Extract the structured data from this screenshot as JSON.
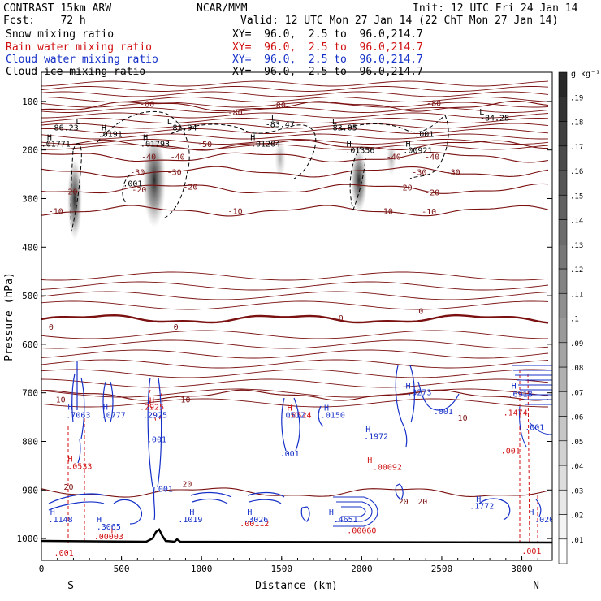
{
  "header": {
    "model": "CONTRAST 15km ARW",
    "forecast": "Fcst:    72 h",
    "center": "NCAR/MMM",
    "init": "Init: 12 UTC Fri 24 Jan 14",
    "valid": "Valid: 12 UTC Mon 27 Jan 14 (22 ChT Mon 27 Jan 14)",
    "fields": [
      {
        "label": "Snow mixing ratio",
        "xy": "XY=  96.0,  2.5 to  96.0,214.7",
        "color": "#000000"
      },
      {
        "label": "Rain water mixing ratio",
        "xy": "XY=  96.0,  2.5 to  96.0,214.7",
        "color": "#d01010"
      },
      {
        "label": "Cloud water mixing ratio",
        "xy": "XY=  96.0,  2.5 to  96.0,214.7",
        "color": "#1530c8"
      },
      {
        "label": "Cloud ice mixing ratio",
        "xy": "XY=  96.0,  2.5 to  96.0,214.7",
        "color": "#000000"
      }
    ]
  },
  "chart_data": {
    "type": "cross-section contour",
    "xlabel": "Distance (km)",
    "ylabel": "Pressure (hPa)",
    "xlim": [
      0,
      3190
    ],
    "ylim": [
      1045,
      40
    ],
    "x_ticks": [
      0,
      500,
      1000,
      1500,
      2000,
      2500,
      3000
    ],
    "y_ticks": [
      100,
      200,
      300,
      400,
      500,
      600,
      700,
      800,
      900,
      1000
    ],
    "end_labels": {
      "left": "S",
      "right": "N"
    },
    "colorbar": {
      "unit": "g kg⁻¹",
      "levels": [
        ".01",
        ".02",
        ".03",
        ".04",
        ".05",
        ".06",
        ".07",
        ".08",
        ".09",
        ".1",
        ".11",
        ".12",
        ".13",
        ".14",
        ".15",
        ".16",
        ".17",
        ".18",
        ".19"
      ]
    },
    "isotherms": [
      {
        "p": 110,
        "label": "-80"
      },
      {
        "p": 190,
        "label": "-50"
      },
      {
        "p": 215,
        "label": "-40"
      },
      {
        "p": 245,
        "label": "-30"
      },
      {
        "p": 280,
        "label": "-20"
      },
      {
        "p": 325,
        "label": "-10"
      },
      {
        "p": 548,
        "label": "0"
      },
      {
        "p": 705,
        "label": "10"
      },
      {
        "p": 905,
        "label": "20"
      }
    ],
    "isotherm_label_points": [
      {
        "x": 660,
        "p": 104,
        "text": "-80"
      },
      {
        "x": 1210,
        "p": 122,
        "text": "-80"
      },
      {
        "x": 1480,
        "p": 107,
        "text": "-80"
      },
      {
        "x": 2450,
        "p": 103,
        "text": "-80"
      },
      {
        "x": 1020,
        "p": 187,
        "text": "-50"
      },
      {
        "x": 670,
        "p": 213,
        "text": "-40"
      },
      {
        "x": 850,
        "p": 213,
        "text": "-40"
      },
      {
        "x": 2200,
        "p": 213,
        "text": "-40"
      },
      {
        "x": 2440,
        "p": 213,
        "text": "-40"
      },
      {
        "x": 600,
        "p": 245,
        "text": "-30"
      },
      {
        "x": 830,
        "p": 245,
        "text": "-30"
      },
      {
        "x": 2360,
        "p": 245,
        "text": "-30"
      },
      {
        "x": 2570,
        "p": 245,
        "text": "-30"
      },
      {
        "x": 180,
        "p": 285,
        "text": "-20"
      },
      {
        "x": 610,
        "p": 281,
        "text": "-20"
      },
      {
        "x": 930,
        "p": 275,
        "text": "-20"
      },
      {
        "x": 2270,
        "p": 277,
        "text": "-20"
      },
      {
        "x": 2440,
        "p": 287,
        "text": "-20"
      },
      {
        "x": 90,
        "p": 325,
        "text": "-10"
      },
      {
        "x": 1210,
        "p": 325,
        "text": "-10"
      },
      {
        "x": 2150,
        "p": 325,
        "text": "-10"
      },
      {
        "x": 2420,
        "p": 326,
        "text": "-10"
      },
      {
        "x": 60,
        "p": 563,
        "text": "0"
      },
      {
        "x": 840,
        "p": 563,
        "text": "0"
      },
      {
        "x": 1870,
        "p": 545,
        "text": "0"
      },
      {
        "x": 2370,
        "p": 531,
        "text": "0"
      },
      {
        "x": 120,
        "p": 713,
        "text": "10"
      },
      {
        "x": 900,
        "p": 713,
        "text": "10"
      },
      {
        "x": 2630,
        "p": 751,
        "text": "10"
      },
      {
        "x": 170,
        "p": 893,
        "text": "20"
      },
      {
        "x": 910,
        "p": 887,
        "text": "20"
      },
      {
        "x": 2260,
        "p": 923,
        "text": "20"
      },
      {
        "x": 2380,
        "p": 923,
        "text": "20"
      }
    ],
    "snow_maxima": [
      {
        "x": 230,
        "p": 140,
        "text": "L"
      },
      {
        "x": 140,
        "p": 153,
        "text": "-86.23"
      },
      {
        "x": 390,
        "p": 153,
        "text": "H"
      },
      {
        "x": 430,
        "p": 166,
        "text": ".0191"
      },
      {
        "x": 800,
        "p": 140,
        "text": "L"
      },
      {
        "x": 880,
        "p": 153,
        "text": "-81.94"
      },
      {
        "x": 1450,
        "p": 133,
        "text": "L"
      },
      {
        "x": 1490,
        "p": 146,
        "text": "-83.47"
      },
      {
        "x": 1830,
        "p": 140,
        "text": "L"
      },
      {
        "x": 1880,
        "p": 153,
        "text": "-83.05"
      },
      {
        "x": 2750,
        "p": 120,
        "text": "L"
      },
      {
        "x": 2830,
        "p": 133,
        "text": "-84.28"
      },
      {
        "x": 2390,
        "p": 166,
        "text": ".001"
      },
      {
        "x": 50,
        "p": 173,
        "text": "H"
      },
      {
        "x": 90,
        "p": 186,
        "text": ".01771"
      },
      {
        "x": 650,
        "p": 173,
        "text": "H"
      },
      {
        "x": 710,
        "p": 186,
        "text": ".01793"
      },
      {
        "x": 1320,
        "p": 173,
        "text": "H"
      },
      {
        "x": 1400,
        "p": 186,
        "text": ".01204"
      },
      {
        "x": 1920,
        "p": 186,
        "text": "H"
      },
      {
        "x": 1990,
        "p": 200,
        "text": ".01356"
      },
      {
        "x": 2290,
        "p": 186,
        "text": "H"
      },
      {
        "x": 2350,
        "p": 200,
        "text": ".00921"
      },
      {
        "x": 570,
        "p": 268,
        "text": ".001"
      }
    ],
    "rain_maxima": [
      {
        "x": 180,
        "p": 835,
        "text": "H"
      },
      {
        "x": 240,
        "p": 850,
        "text": ".0533"
      },
      {
        "x": 690,
        "p": 715,
        "text": "H"
      },
      {
        "x": 690,
        "p": 728,
        "text": ".2925"
      },
      {
        "x": 1550,
        "p": 730,
        "text": "H"
      },
      {
        "x": 1610,
        "p": 745,
        "text": ".0524"
      },
      {
        "x": 2050,
        "p": 838,
        "text": "H"
      },
      {
        "x": 2160,
        "p": 852,
        "text": ".00092"
      },
      {
        "x": 2960,
        "p": 740,
        "text": ".1474"
      },
      {
        "x": 2930,
        "p": 818,
        "text": ".001"
      },
      {
        "x": 450,
        "p": 982,
        "text": "H"
      },
      {
        "x": 420,
        "p": 995,
        "text": ".00003"
      },
      {
        "x": 1330,
        "p": 968,
        "text": ".00112"
      },
      {
        "x": 2000,
        "p": 982,
        "text": ".00060"
      },
      {
        "x": 3060,
        "p": 1025,
        "text": ".001"
      },
      {
        "x": 140,
        "p": 1028,
        "text": ".001"
      }
    ],
    "cloud_water_maxima": [
      {
        "x": 180,
        "p": 728,
        "text": "H"
      },
      {
        "x": 230,
        "p": 745,
        "text": ".7063"
      },
      {
        "x": 400,
        "p": 728,
        "text": "H"
      },
      {
        "x": 450,
        "p": 745,
        "text": ".0777"
      },
      {
        "x": 710,
        "p": 745,
        "text": ".2925"
      },
      {
        "x": 720,
        "p": 795,
        "text": ".001"
      },
      {
        "x": 1570,
        "p": 745,
        "text": ".0512"
      },
      {
        "x": 1780,
        "p": 730,
        "text": "H"
      },
      {
        "x": 1820,
        "p": 745,
        "text": ".0150"
      },
      {
        "x": 2040,
        "p": 774,
        "text": "H"
      },
      {
        "x": 2090,
        "p": 788,
        "text": ".1972"
      },
      {
        "x": 2290,
        "p": 685,
        "text": "H"
      },
      {
        "x": 2360,
        "p": 698,
        "text": ".3273"
      },
      {
        "x": 2510,
        "p": 737,
        "text": ".001"
      },
      {
        "x": 2950,
        "p": 685,
        "text": "H"
      },
      {
        "x": 2990,
        "p": 701,
        "text": ".6918"
      },
      {
        "x": 3080,
        "p": 770,
        "text": ".001"
      },
      {
        "x": 1550,
        "p": 824,
        "text": ".001"
      },
      {
        "x": 760,
        "p": 897,
        "text": ".001"
      },
      {
        "x": 70,
        "p": 945,
        "text": "H"
      },
      {
        "x": 120,
        "p": 960,
        "text": ".1148"
      },
      {
        "x": 360,
        "p": 960,
        "text": "H"
      },
      {
        "x": 420,
        "p": 975,
        "text": ".3065"
      },
      {
        "x": 940,
        "p": 945,
        "text": "H"
      },
      {
        "x": 930,
        "p": 960,
        "text": ".1019"
      },
      {
        "x": 1300,
        "p": 945,
        "text": "H"
      },
      {
        "x": 1340,
        "p": 960,
        "text": ".3026"
      },
      {
        "x": 1810,
        "p": 945,
        "text": "H"
      },
      {
        "x": 1900,
        "p": 960,
        "text": ".4651"
      },
      {
        "x": 2730,
        "p": 918,
        "text": "H"
      },
      {
        "x": 2750,
        "p": 932,
        "text": ".1772"
      },
      {
        "x": 3060,
        "p": 945,
        "text": "H"
      },
      {
        "x": 3140,
        "p": 960,
        "text": ".020"
      }
    ]
  }
}
